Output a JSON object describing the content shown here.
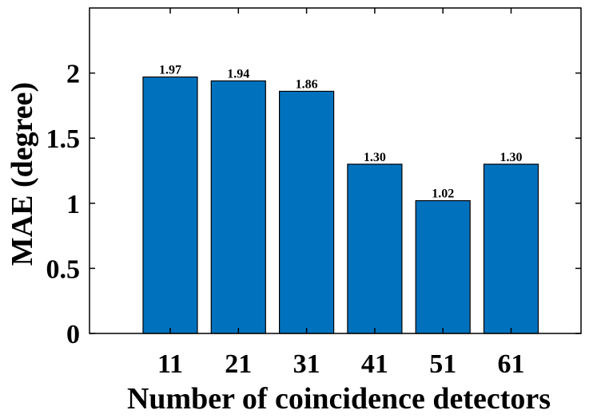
{
  "chart_data": {
    "type": "bar",
    "categories": [
      "11",
      "21",
      "31",
      "41",
      "51",
      "61"
    ],
    "values": [
      1.97,
      1.94,
      1.86,
      1.3,
      1.02,
      1.3
    ],
    "data_labels": [
      "1.97",
      "1.94",
      "1.86",
      "1.30",
      "1.02",
      "1.30"
    ],
    "title": "",
    "xlabel": "Number of coincidence detectors",
    "ylabel": "MAE (degree)",
    "ylim": [
      0,
      2.5
    ],
    "yticks": [
      0,
      0.5,
      1,
      1.5,
      2
    ],
    "ytick_labels": [
      "0",
      "0.5",
      "1",
      "1.5",
      "2"
    ],
    "grid": false,
    "bar_color": "#0072BD",
    "bar_edge_color": "#000000"
  }
}
